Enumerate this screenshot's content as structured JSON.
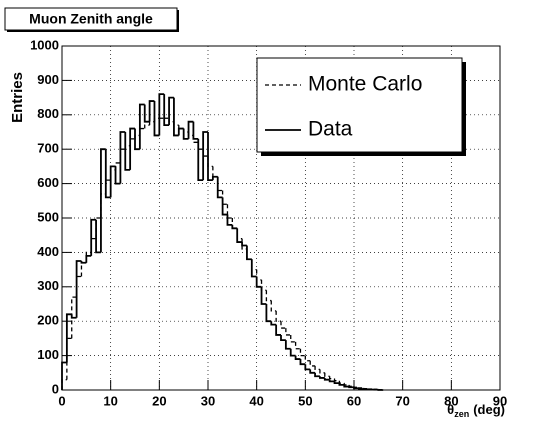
{
  "chart_data": {
    "type": "histogram",
    "title": "Muon Zenith angle",
    "y_label": "Entries",
    "x_label": {
      "symbol": "θ",
      "subscript": "zen",
      "unit": "(deg)"
    },
    "xlim": [
      0,
      90
    ],
    "ylim": [
      0,
      1000
    ],
    "xticks": [
      0,
      10,
      20,
      30,
      40,
      50,
      60,
      70,
      80,
      90
    ],
    "yticks": [
      0,
      100,
      200,
      300,
      400,
      500,
      600,
      700,
      800,
      900,
      1000
    ],
    "grid": true,
    "legend": "top-right",
    "bins": [
      0,
      1,
      2,
      3,
      4,
      5,
      6,
      7,
      8,
      9,
      10,
      11,
      12,
      13,
      14,
      15,
      16,
      17,
      18,
      19,
      20,
      21,
      22,
      23,
      24,
      25,
      26,
      27,
      28,
      29,
      30,
      31,
      32,
      33,
      34,
      35,
      36,
      37,
      38,
      39,
      40,
      41,
      42,
      43,
      44,
      45,
      46,
      47,
      48,
      49,
      50,
      51,
      52,
      53,
      54,
      55,
      56,
      57,
      58,
      59,
      60,
      61,
      62,
      63,
      64,
      65,
      66
    ],
    "series": [
      {
        "name": "Monte Carlo",
        "color": "#000000",
        "dash": "dashed",
        "values": [
          30,
          150,
          270,
          330,
          370,
          400,
          440,
          500,
          570,
          610,
          640,
          660,
          700,
          710,
          730,
          740,
          760,
          770,
          780,
          790,
          790,
          790,
          780,
          770,
          760,
          750,
          740,
          720,
          700,
          680,
          650,
          620,
          580,
          540,
          500,
          470,
          440,
          410,
          380,
          350,
          320,
          290,
          260,
          230,
          200,
          180,
          160,
          140,
          120,
          100,
          85,
          70,
          60,
          50,
          40,
          33,
          27,
          20,
          15,
          11,
          8,
          6,
          4,
          3,
          2,
          1
        ]
      },
      {
        "name": "Data",
        "color": "#000000",
        "dash": "solid",
        "values": [
          80,
          220,
          210,
          375,
          370,
          390,
          495,
          400,
          700,
          560,
          650,
          600,
          750,
          640,
          760,
          700,
          830,
          780,
          840,
          740,
          860,
          770,
          850,
          740,
          760,
          730,
          780,
          730,
          610,
          750,
          610,
          620,
          560,
          510,
          480,
          470,
          430,
          420,
          380,
          330,
          300,
          250,
          200,
          190,
          160,
          145,
          120,
          100,
          90,
          75,
          60,
          50,
          40,
          35,
          30,
          25,
          20,
          15,
          10,
          8,
          5,
          3,
          2,
          1,
          1,
          0
        ]
      }
    ]
  }
}
